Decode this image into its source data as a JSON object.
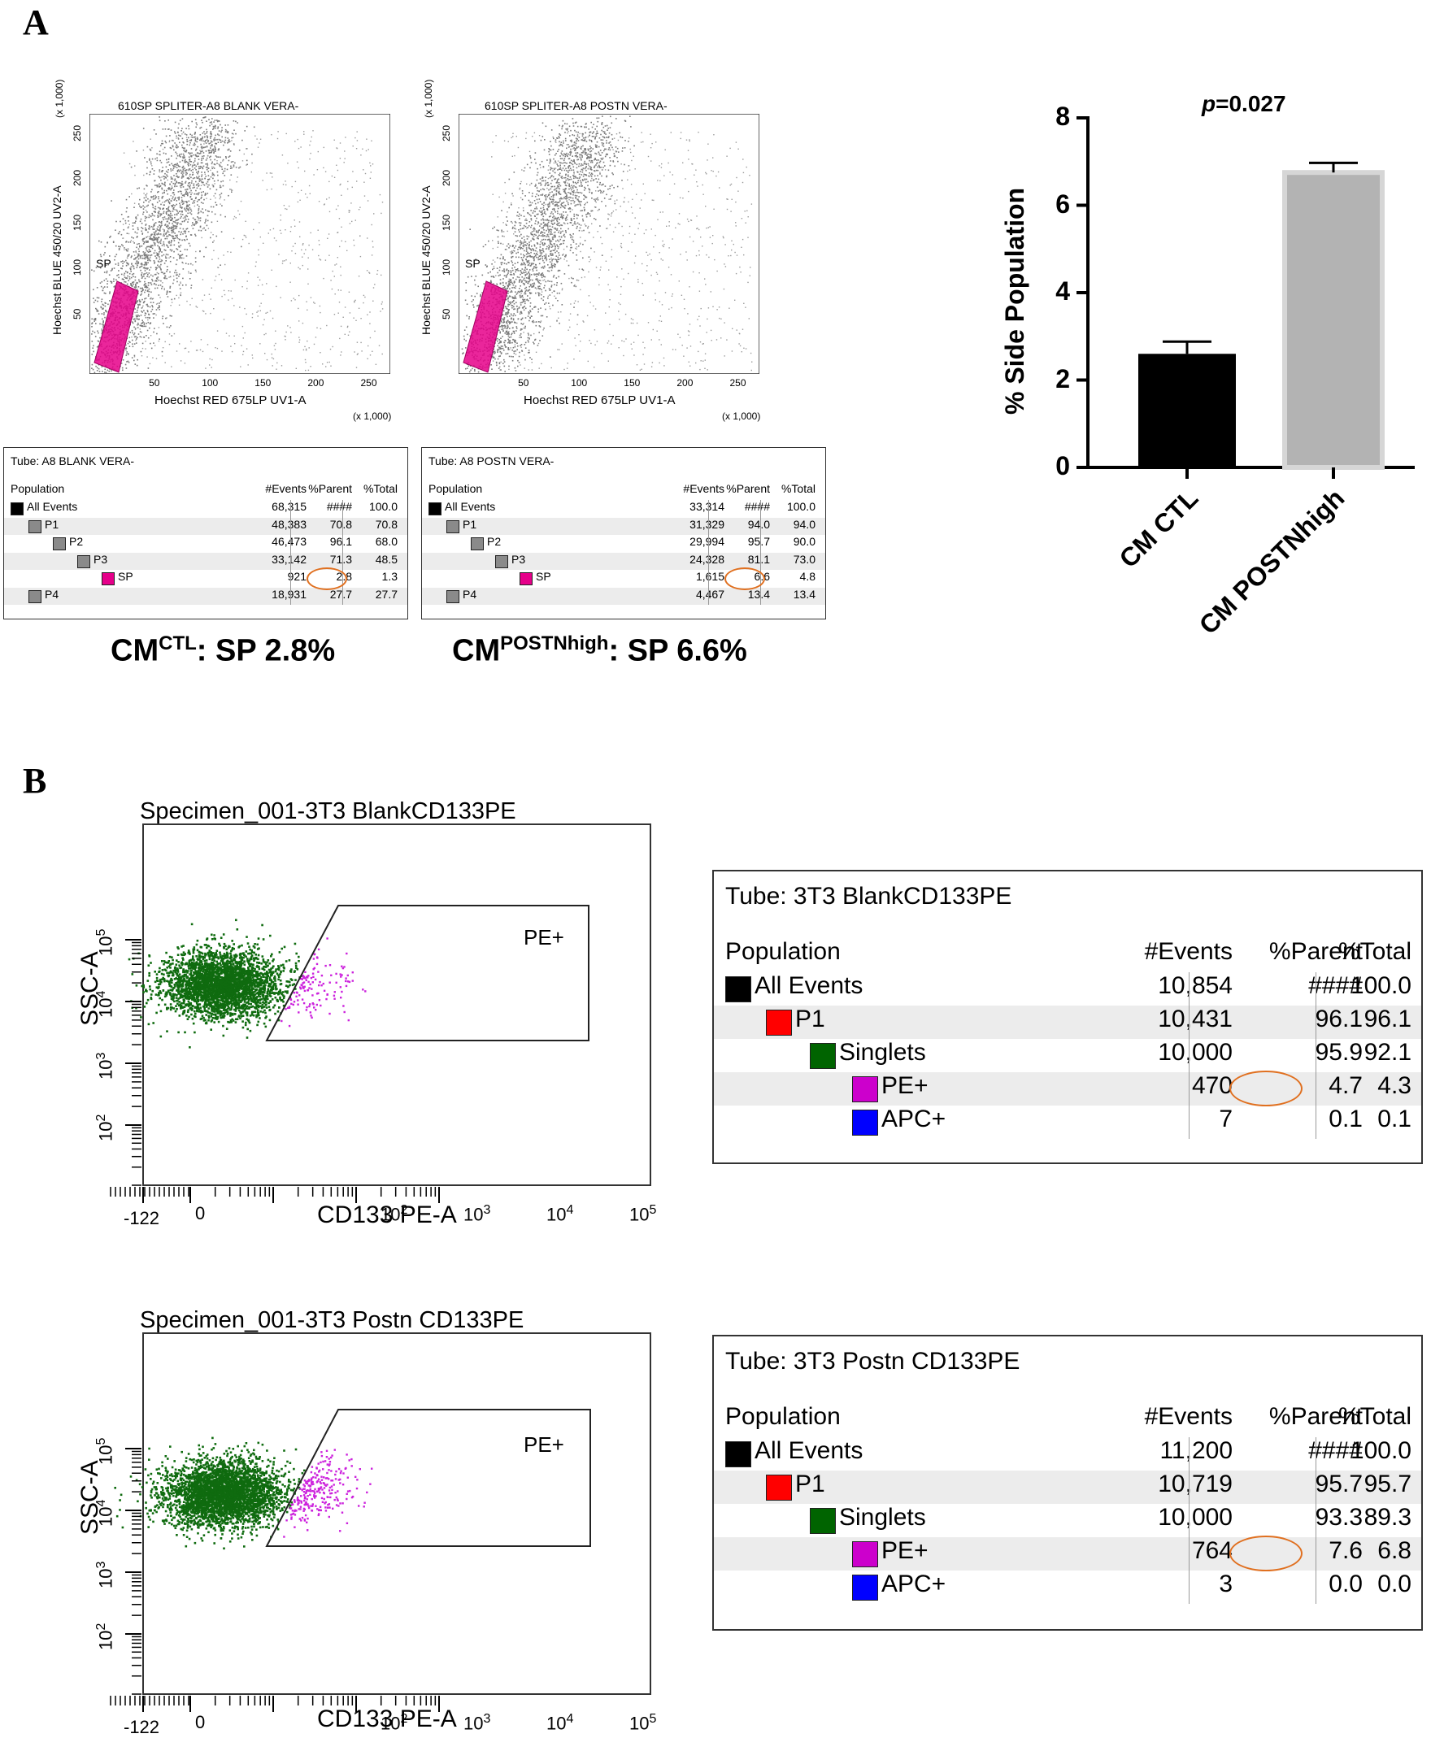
{
  "panels": {
    "a": "A",
    "b": "B"
  },
  "scatter_a": [
    {
      "title": "610SP SPLITER-A8 BLANK VERA-",
      "xlabel": "Hoechst RED 675LP UV1-A",
      "ylabel": "Hoechst BLUE 450/20 UV2-A",
      "xunit": "(x 1,000)",
      "yunit": "(x 1,000)",
      "gate": "SP"
    },
    {
      "title": "610SP SPLITER-A8 POSTN VERA-",
      "xlabel": "Hoechst RED 675LP UV1-A",
      "ylabel": "Hoechst BLUE 450/20 UV2-A",
      "xunit": "(x 1,000)",
      "yunit": "(x 1,000)",
      "gate": "SP"
    }
  ],
  "ticks_a": {
    "x": [
      "50",
      "100",
      "150",
      "200",
      "250"
    ],
    "y": [
      "50",
      "100",
      "150",
      "200",
      "250"
    ]
  },
  "stats_a": [
    {
      "tube": "Tube:  A8 BLANK VERA-",
      "headers": [
        "Population",
        "#Events",
        "%Parent",
        "%Total"
      ],
      "rows": [
        {
          "name": "All Events",
          "events": "68,315",
          "parent": "####",
          "total": "100.0"
        },
        {
          "name": "P1",
          "events": "48,383",
          "parent": "70.8",
          "total": "70.8"
        },
        {
          "name": "P2",
          "events": "46,473",
          "parent": "96.1",
          "total": "68.0"
        },
        {
          "name": "P3",
          "events": "33,142",
          "parent": "71.3",
          "total": "48.5"
        },
        {
          "name": "SP",
          "events": "921",
          "parent": "2.8",
          "total": "1.3"
        },
        {
          "name": "P4",
          "events": "18,931",
          "parent": "27.7",
          "total": "27.7"
        }
      ]
    },
    {
      "tube": "Tube:  A8 POSTN VERA-",
      "headers": [
        "Population",
        "#Events",
        "%Parent",
        "%Total"
      ],
      "rows": [
        {
          "name": "All Events",
          "events": "33,314",
          "parent": "####",
          "total": "100.0"
        },
        {
          "name": "P1",
          "events": "31,329",
          "parent": "94.0",
          "total": "94.0"
        },
        {
          "name": "P2",
          "events": "29,994",
          "parent": "95.7",
          "total": "90.0"
        },
        {
          "name": "P3",
          "events": "24,328",
          "parent": "81.1",
          "total": "73.0"
        },
        {
          "name": "SP",
          "events": "1,615",
          "parent": "6.6",
          "total": "4.8"
        },
        {
          "name": "P4",
          "events": "4,467",
          "parent": "13.4",
          "total": "13.4"
        }
      ]
    }
  ],
  "captions": [
    {
      "main": "CM",
      "sup": "CTL",
      "rest": ": SP 2.8%"
    },
    {
      "main": "CM",
      "sup": "POSTNhigh",
      "rest": ": SP 6.6%"
    }
  ],
  "chart_data": {
    "type": "bar",
    "categories": [
      "CM CTL",
      "CM POSTNhigh"
    ],
    "values": [
      2.6,
      6.75
    ],
    "errors": [
      0.28,
      0.22
    ],
    "ylabel": "% Side Population",
    "ylim": [
      0,
      8
    ],
    "yticks": [
      "0",
      "2",
      "4",
      "6",
      "8"
    ],
    "annotation_prefix": "p",
    "annotation_value": "=0.027",
    "colors": [
      "#000000",
      "#b3b3b3"
    ]
  },
  "scatter_b": [
    {
      "title": "Specimen_001-3T3 BlankCD133PE",
      "xlabel": "CD133 PE-A",
      "ylabel": "SSC-A",
      "gate": "PE+"
    },
    {
      "title": "Specimen_001-3T3 Postn CD133PE",
      "xlabel": "CD133 PE-A",
      "ylabel": "SSC-A",
      "gate": "PE+"
    }
  ],
  "ticks_b": {
    "x_neg": "-122",
    "x_zero": "0",
    "x_base": "10",
    "x_exps": [
      "2",
      "3",
      "4",
      "5"
    ],
    "y_base": "10",
    "y_exps": [
      "2",
      "3",
      "4",
      "5"
    ]
  },
  "stats_b": [
    {
      "tube": "Tube:    3T3 BlankCD133PE",
      "headers": [
        "Population",
        "#Events",
        "%Parent",
        "%Total"
      ],
      "rows": [
        {
          "name": "All Events",
          "events": "10,854",
          "parent": "####",
          "total": "100.0"
        },
        {
          "name": "P1",
          "events": "10,431",
          "parent": "96.1",
          "total": "96.1"
        },
        {
          "name": "Singlets",
          "events": "10,000",
          "parent": "95.9",
          "total": "92.1"
        },
        {
          "name": "PE+",
          "events": "470",
          "parent": "4.7",
          "total": "4.3"
        },
        {
          "name": "APC+",
          "events": "7",
          "parent": "0.1",
          "total": "0.1"
        }
      ]
    },
    {
      "tube": "Tube:    3T3 Postn CD133PE",
      "headers": [
        "Population",
        "#Events",
        "%Parent",
        "%Total"
      ],
      "rows": [
        {
          "name": "All Events",
          "events": "11,200",
          "parent": "####",
          "total": "100.0"
        },
        {
          "name": "P1",
          "events": "10,719",
          "parent": "95.7",
          "total": "95.7"
        },
        {
          "name": "Singlets",
          "events": "10,000",
          "parent": "93.3",
          "total": "89.3"
        },
        {
          "name": "PE+",
          "events": "764",
          "parent": "7.6",
          "total": "6.8"
        },
        {
          "name": "APC+",
          "events": "3",
          "parent": "0.0",
          "total": "0.0"
        }
      ]
    }
  ]
}
